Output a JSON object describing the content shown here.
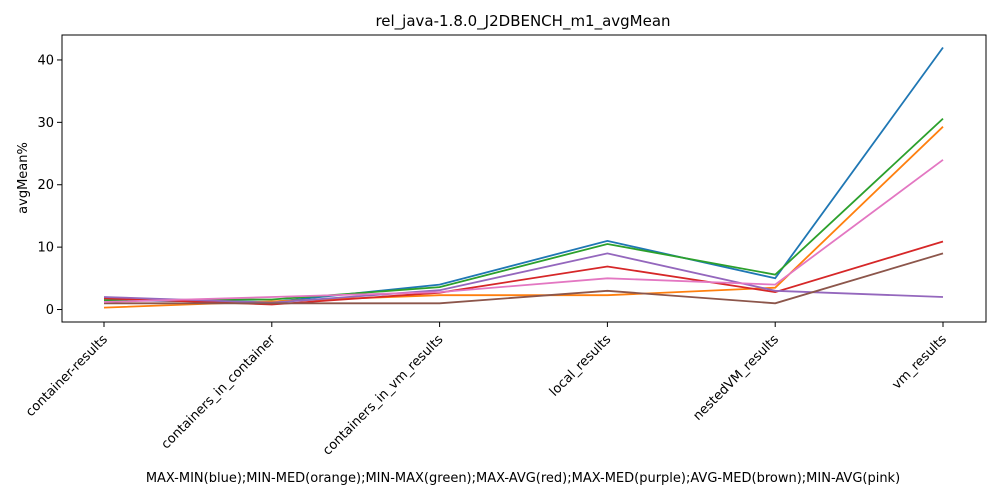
{
  "chart_data": {
    "type": "line",
    "title": "rel_java-1.8.0_J2DBENCH_m1_avgMean",
    "xlabel": "MAX-MIN(blue);MIN-MED(orange);MIN-MAX(green);MAX-AVG(red);MAX-MED(purple);AVG-MED(brown);MIN-AVG(pink)",
    "ylabel": "avgMean%",
    "categories": [
      "container-results",
      "containers_in_container",
      "containers_in_vm_results",
      "local_results",
      "nestedVM_results",
      "vm_results"
    ],
    "ylim": [
      -2,
      44
    ],
    "yticks": [
      0,
      10,
      20,
      30,
      40
    ],
    "grid": false,
    "series": [
      {
        "color": "#1f77b4",
        "values": [
          1.5,
          1.2,
          4.0,
          11.0,
          5.0,
          42.0
        ]
      },
      {
        "color": "#ff7f0e",
        "values": [
          0.3,
          1.3,
          2.3,
          2.3,
          3.5,
          29.3
        ]
      },
      {
        "color": "#2ca02c",
        "values": [
          1.5,
          1.6,
          3.6,
          10.5,
          5.6,
          30.6
        ]
      },
      {
        "color": "#d62728",
        "values": [
          1.8,
          0.8,
          2.7,
          6.9,
          2.8,
          10.9
        ]
      },
      {
        "color": "#9467bd",
        "values": [
          2.0,
          1.1,
          3.1,
          9.0,
          3.0,
          2.0
        ]
      },
      {
        "color": "#8c564b",
        "values": [
          1.0,
          1.0,
          1.0,
          3.0,
          1.0,
          9.0
        ]
      },
      {
        "color": "#e377c2",
        "values": [
          1.2,
          2.0,
          2.8,
          5.0,
          4.0,
          24.0
        ]
      }
    ]
  }
}
